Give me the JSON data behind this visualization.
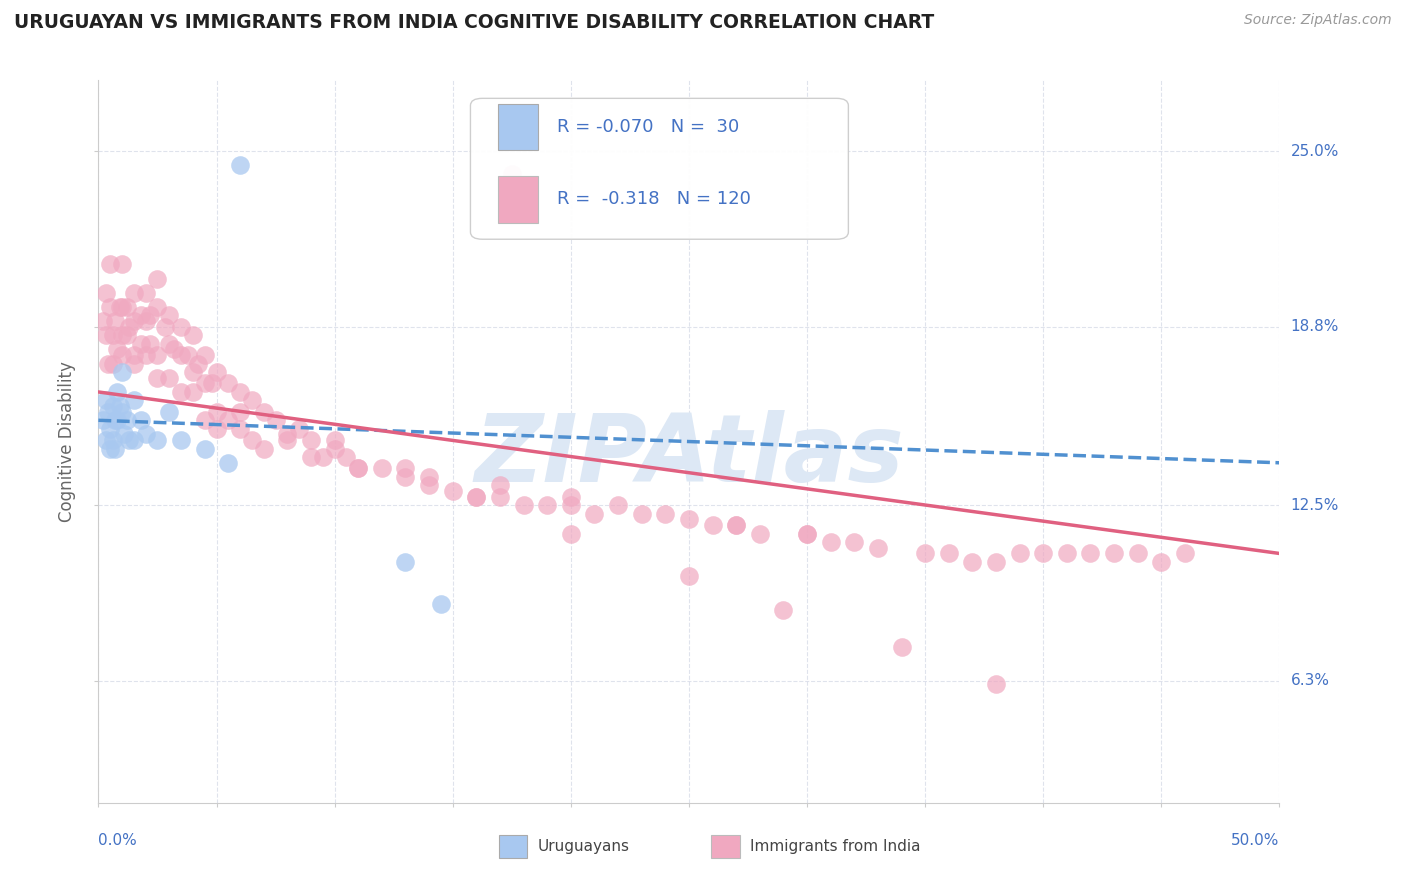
{
  "title": "URUGUAYAN VS IMMIGRANTS FROM INDIA COGNITIVE DISABILITY CORRELATION CHART",
  "source": "Source: ZipAtlas.com",
  "ylabel": "Cognitive Disability",
  "ytick_labels": [
    "6.3%",
    "12.5%",
    "18.8%",
    "25.0%"
  ],
  "ytick_values": [
    0.063,
    0.125,
    0.188,
    0.25
  ],
  "xmin": 0.0,
  "xmax": 0.5,
  "ymin": 0.02,
  "ymax": 0.275,
  "color_uruguayan": "#a8c8f0",
  "color_india": "#f0a8c0",
  "color_blue_line": "#5090d0",
  "color_pink_line": "#e06080",
  "color_text_blue": "#4472c4",
  "color_legend_text": "#4472c4",
  "watermark_color": "#dde8f5",
  "watermark_text": "ZIPAtlas",
  "blue_line_start_y": 0.155,
  "blue_line_end_y": 0.14,
  "pink_line_start_y": 0.165,
  "pink_line_end_y": 0.108,
  "uru_x": [
    0.002,
    0.003,
    0.003,
    0.004,
    0.005,
    0.005,
    0.006,
    0.006,
    0.007,
    0.007,
    0.008,
    0.008,
    0.009,
    0.01,
    0.01,
    0.011,
    0.012,
    0.013,
    0.015,
    0.015,
    0.018,
    0.02,
    0.025,
    0.03,
    0.035,
    0.045,
    0.055,
    0.13,
    0.145,
    0.06
  ],
  "uru_y": [
    0.155,
    0.148,
    0.162,
    0.158,
    0.152,
    0.145,
    0.16,
    0.148,
    0.155,
    0.145,
    0.165,
    0.155,
    0.16,
    0.172,
    0.158,
    0.15,
    0.155,
    0.148,
    0.162,
    0.148,
    0.155,
    0.15,
    0.148,
    0.158,
    0.148,
    0.145,
    0.14,
    0.105,
    0.09,
    0.245
  ],
  "india_x": [
    0.002,
    0.003,
    0.003,
    0.004,
    0.005,
    0.005,
    0.006,
    0.006,
    0.007,
    0.008,
    0.009,
    0.01,
    0.01,
    0.01,
    0.012,
    0.012,
    0.013,
    0.015,
    0.015,
    0.015,
    0.018,
    0.018,
    0.02,
    0.02,
    0.02,
    0.022,
    0.022,
    0.025,
    0.025,
    0.025,
    0.028,
    0.03,
    0.03,
    0.03,
    0.032,
    0.035,
    0.035,
    0.035,
    0.038,
    0.04,
    0.04,
    0.042,
    0.045,
    0.045,
    0.045,
    0.048,
    0.05,
    0.05,
    0.055,
    0.055,
    0.06,
    0.06,
    0.065,
    0.065,
    0.07,
    0.075,
    0.08,
    0.085,
    0.09,
    0.095,
    0.1,
    0.105,
    0.11,
    0.12,
    0.13,
    0.14,
    0.15,
    0.16,
    0.17,
    0.175,
    0.18,
    0.19,
    0.2,
    0.21,
    0.22,
    0.23,
    0.25,
    0.26,
    0.27,
    0.28,
    0.3,
    0.31,
    0.32,
    0.33,
    0.35,
    0.36,
    0.37,
    0.38,
    0.39,
    0.4,
    0.41,
    0.42,
    0.43,
    0.44,
    0.45,
    0.46,
    0.38,
    0.34,
    0.29,
    0.25,
    0.2,
    0.16,
    0.13,
    0.1,
    0.08,
    0.06,
    0.04,
    0.025,
    0.015,
    0.01,
    0.05,
    0.07,
    0.09,
    0.11,
    0.14,
    0.17,
    0.2,
    0.24,
    0.27,
    0.3
  ],
  "india_y": [
    0.19,
    0.2,
    0.185,
    0.175,
    0.195,
    0.21,
    0.185,
    0.175,
    0.19,
    0.18,
    0.195,
    0.21,
    0.195,
    0.185,
    0.195,
    0.185,
    0.188,
    0.2,
    0.19,
    0.178,
    0.192,
    0.182,
    0.2,
    0.19,
    0.178,
    0.192,
    0.182,
    0.205,
    0.195,
    0.178,
    0.188,
    0.192,
    0.182,
    0.17,
    0.18,
    0.188,
    0.178,
    0.165,
    0.178,
    0.185,
    0.172,
    0.175,
    0.178,
    0.168,
    0.155,
    0.168,
    0.172,
    0.158,
    0.168,
    0.155,
    0.165,
    0.152,
    0.162,
    0.148,
    0.158,
    0.155,
    0.148,
    0.152,
    0.148,
    0.142,
    0.148,
    0.142,
    0.138,
    0.138,
    0.135,
    0.132,
    0.13,
    0.128,
    0.128,
    0.242,
    0.125,
    0.125,
    0.125,
    0.122,
    0.125,
    0.122,
    0.12,
    0.118,
    0.118,
    0.115,
    0.115,
    0.112,
    0.112,
    0.11,
    0.108,
    0.108,
    0.105,
    0.105,
    0.108,
    0.108,
    0.108,
    0.108,
    0.108,
    0.108,
    0.105,
    0.108,
    0.062,
    0.075,
    0.088,
    0.1,
    0.115,
    0.128,
    0.138,
    0.145,
    0.15,
    0.158,
    0.165,
    0.17,
    0.175,
    0.178,
    0.152,
    0.145,
    0.142,
    0.138,
    0.135,
    0.132,
    0.128,
    0.122,
    0.118,
    0.115
  ]
}
